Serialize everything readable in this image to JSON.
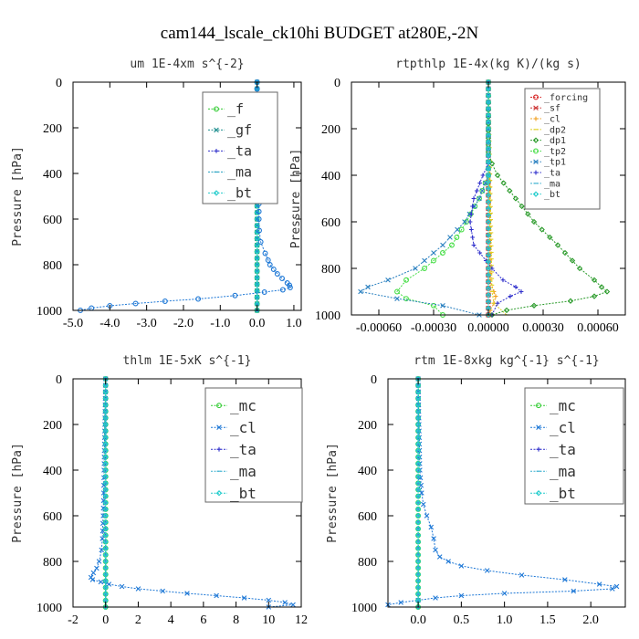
{
  "suptitle": "cam144_lscale_ck10hi  BUDGET at280E,-2N",
  "chart_data": [
    {
      "type": "line",
      "title": "um  1E-4xm s^{-2}",
      "ylabel": "Pressure [hPa]",
      "xlim": [
        -5,
        1.2
      ],
      "ylim": [
        1000,
        0
      ],
      "xticks": [
        "-5.0",
        "-4.0",
        "-3.0",
        "-2.0",
        "-1.0",
        "0.0",
        "1.0"
      ],
      "xtick_values": [
        -5,
        -4,
        -3,
        -2,
        -1,
        0,
        1
      ],
      "yticks": [
        "0",
        "200",
        "400",
        "600",
        "800",
        "1000"
      ],
      "ytick_values": [
        0,
        200,
        400,
        600,
        800,
        1000
      ],
      "legend_position": "top-right",
      "series": [
        {
          "name": "_f",
          "color": "#33cc33",
          "y": [
            0,
            200,
            400,
            600,
            800,
            1000
          ],
          "x": [
            0,
            0,
            0,
            0,
            0,
            0
          ]
        },
        {
          "name": "_gf",
          "color": "#1f8f8f",
          "y": [
            0,
            200,
            400,
            600,
            800,
            1000
          ],
          "x": [
            0,
            0,
            0,
            0,
            0,
            0
          ]
        },
        {
          "name": "_ta",
          "color": "#3333cc",
          "y": [
            0,
            200,
            400,
            600,
            800,
            1000
          ],
          "x": [
            0,
            0,
            0,
            0,
            0,
            0
          ]
        },
        {
          "name": "_ma",
          "color": "#22a0c0",
          "y": [
            0,
            200,
            400,
            600,
            800,
            1000
          ],
          "x": [
            0,
            0,
            0,
            0,
            0,
            0
          ]
        },
        {
          "name": "_bt",
          "color": "#22cccc",
          "y": [
            0,
            200,
            400,
            600,
            800,
            1000
          ],
          "x": [
            0,
            0,
            0,
            0,
            0,
            0
          ]
        },
        {
          "name": "",
          "color": "#1e78d6",
          "y": [
            0,
            120,
            150,
            200,
            300,
            400,
            500,
            600,
            650,
            700,
            750,
            780,
            800,
            820,
            840,
            860,
            880,
            890,
            900,
            910,
            920,
            935,
            950,
            960,
            970,
            980,
            990,
            1000
          ],
          "x": [
            0,
            0,
            -0.05,
            0.02,
            0.05,
            0.05,
            0.05,
            0.05,
            0.06,
            0.1,
            0.22,
            0.3,
            0.35,
            0.45,
            0.55,
            0.68,
            0.82,
            0.88,
            0.9,
            0.7,
            0.2,
            -0.6,
            -1.6,
            -2.5,
            -3.3,
            -4.0,
            -4.5,
            -4.8
          ]
        }
      ]
    },
    {
      "type": "line",
      "title": "rtpthlp  1E-4x(kg K)/(kg s)",
      "ylabel": "Pressure [hPa]",
      "xlim": [
        -0.00075,
        0.00075
      ],
      "ylim": [
        1000,
        0
      ],
      "xticks": [
        "-0.00060",
        "-0.00030",
        "0.00000",
        "0.00030",
        "0.00060"
      ],
      "xtick_values": [
        -0.0006,
        -0.0003,
        0,
        0.0003,
        0.0006
      ],
      "yticks": [
        "0",
        "200",
        "400",
        "600",
        "800",
        "1000"
      ],
      "ytick_values": [
        0,
        200,
        400,
        600,
        800,
        1000
      ],
      "legend_position": "top-right",
      "series": [
        {
          "name": "_forcing",
          "color": "#d62020",
          "y": [
            0,
            200,
            400,
            600,
            800,
            1000
          ],
          "x": [
            0,
            0,
            0,
            0,
            0,
            0
          ]
        },
        {
          "name": "_sf",
          "color": "#cc3333",
          "y": [
            0,
            200,
            400,
            600,
            800,
            1000
          ],
          "x": [
            0,
            0,
            0,
            0,
            0,
            0
          ]
        },
        {
          "name": "_cl",
          "color": "#f0a020",
          "y": [
            0,
            850,
            900,
            920,
            950,
            980,
            1000
          ],
          "x": [
            0,
            1e-05,
            3e-05,
            4e-05,
            3e-05,
            1e-05,
            0
          ]
        },
        {
          "name": "_dp2",
          "color": "#e0d020",
          "y": [
            0,
            900,
            950,
            1000
          ],
          "x": [
            0,
            2e-05,
            3e-05,
            0.0001
          ]
        },
        {
          "name": "_dp1",
          "color": "#2a9a2a",
          "y": [
            0,
            300,
            350,
            400,
            500,
            600,
            700,
            800,
            850,
            880,
            900,
            920,
            940,
            960,
            980,
            1000
          ],
          "x": [
            0,
            0,
            2e-05,
            5e-05,
            0.00015,
            0.00025,
            0.00038,
            0.0005,
            0.00058,
            0.00062,
            0.00065,
            0.00058,
            0.00045,
            0.00025,
            0.0001,
            2e-05
          ]
        },
        {
          "name": "_tp2",
          "color": "#44dd44",
          "y": [
            0,
            400,
            500,
            600,
            700,
            800,
            850,
            900,
            930,
            960,
            1000
          ],
          "x": [
            0,
            0,
            -5e-05,
            -0.00012,
            -0.0002,
            -0.00035,
            -0.00045,
            -0.0005,
            -0.00045,
            -0.0003,
            -0.00025
          ]
        },
        {
          "name": "_tp1",
          "color": "#2a80c0",
          "y": [
            0,
            400,
            500,
            600,
            700,
            800,
            850,
            880,
            900,
            930,
            960,
            1000
          ],
          "x": [
            0,
            0,
            -5e-05,
            -0.00013,
            -0.00025,
            -0.0004,
            -0.00055,
            -0.00066,
            -0.0007,
            -0.0005,
            -0.00025,
            -5e-05
          ]
        },
        {
          "name": "_ta",
          "color": "#3030cc",
          "y": [
            0,
            350,
            400,
            500,
            600,
            700,
            800,
            850,
            880,
            900,
            920,
            950,
            1000
          ],
          "x": [
            0,
            0,
            -3e-05,
            -8e-05,
            -0.0001,
            -8e-05,
            2e-05,
            8e-05,
            0.00015,
            0.00018,
            0.00012,
            5e-05,
            2e-05
          ]
        },
        {
          "name": "_ma",
          "color": "#3ab0d0",
          "y": [
            0,
            200,
            400,
            600,
            800,
            1000
          ],
          "x": [
            0,
            0,
            0,
            0,
            0,
            0
          ]
        },
        {
          "name": "_bt",
          "color": "#22cccc",
          "y": [
            0,
            200,
            400,
            600,
            800,
            1000
          ],
          "x": [
            0,
            0,
            0,
            0,
            0,
            0
          ]
        }
      ]
    },
    {
      "type": "line",
      "title": "thlm  1E-5xK s^{-1}",
      "ylabel": "Pressure [hPa]",
      "xlim": [
        -2,
        12
      ],
      "ylim": [
        1000,
        0
      ],
      "xticks": [
        "-2",
        "0",
        "2",
        "4",
        "6",
        "8",
        "10",
        "12"
      ],
      "xtick_values": [
        -2,
        0,
        2,
        4,
        6,
        8,
        10,
        12
      ],
      "yticks": [
        "0",
        "200",
        "400",
        "600",
        "800",
        "1000"
      ],
      "ytick_values": [
        0,
        200,
        400,
        600,
        800,
        1000
      ],
      "legend_position": "top-right",
      "series": [
        {
          "name": "_mc",
          "color": "#33cc33",
          "y": [
            0,
            200,
            400,
            600,
            800,
            1000
          ],
          "x": [
            0,
            0,
            0,
            0,
            0,
            0
          ]
        },
        {
          "name": "_cl",
          "color": "#1e78d6",
          "y": [
            0,
            200,
            400,
            500,
            600,
            700,
            750,
            800,
            830,
            850,
            870,
            880,
            890,
            900,
            910,
            920,
            930,
            940,
            950,
            960,
            970,
            980,
            990,
            1000
          ],
          "x": [
            0,
            -0.05,
            -0.1,
            -0.12,
            -0.15,
            -0.2,
            -0.25,
            -0.4,
            -0.55,
            -0.75,
            -0.9,
            -0.8,
            -0.3,
            0.2,
            1.0,
            2.0,
            3.5,
            5.0,
            6.8,
            8.5,
            10.0,
            11.0,
            11.5,
            10.0
          ]
        },
        {
          "name": "_ta",
          "color": "#3030cc",
          "y": [
            0,
            200,
            400,
            600,
            800,
            1000
          ],
          "x": [
            0,
            0,
            0,
            0,
            0,
            0
          ]
        },
        {
          "name": "_ma",
          "color": "#3ab0d0",
          "y": [
            0,
            200,
            400,
            600,
            800,
            1000
          ],
          "x": [
            0,
            0,
            0,
            0,
            0,
            0
          ]
        },
        {
          "name": "_bt",
          "color": "#22cccc",
          "y": [
            0,
            200,
            400,
            600,
            800,
            1000
          ],
          "x": [
            0,
            0,
            0,
            0,
            0,
            0
          ]
        }
      ]
    },
    {
      "type": "line",
      "title": "rtm  1E-8xkg kg^{-1} s^{-1}",
      "ylabel": "Pressure [hPa]",
      "xlim": [
        -0.35,
        2.4
      ],
      "ylim": [
        1000,
        0
      ],
      "xticks": [
        "0.0",
        "0.5",
        "1.0",
        "1.5",
        "2.0"
      ],
      "xtick_values": [
        0,
        0.5,
        1,
        1.5,
        2
      ],
      "yticks": [
        "0",
        "200",
        "400",
        "600",
        "800",
        "1000"
      ],
      "ytick_values": [
        0,
        200,
        400,
        600,
        800,
        1000
      ],
      "legend_position": "top-right",
      "series": [
        {
          "name": "_mc",
          "color": "#33cc33",
          "y": [
            0,
            200,
            400,
            600,
            800,
            1000
          ],
          "x": [
            0,
            0,
            0,
            0,
            0,
            0
          ]
        },
        {
          "name": "_cl",
          "color": "#1e78d6",
          "y": [
            0,
            200,
            400,
            500,
            550,
            600,
            650,
            700,
            750,
            780,
            800,
            820,
            840,
            860,
            880,
            900,
            910,
            920,
            930,
            940,
            950,
            960,
            970,
            980,
            990
          ],
          "x": [
            0,
            0.01,
            0.02,
            0.04,
            0.06,
            0.1,
            0.15,
            0.18,
            0.2,
            0.25,
            0.35,
            0.5,
            0.8,
            1.2,
            1.7,
            2.1,
            2.3,
            2.25,
            1.8,
            1.0,
            0.5,
            0.2,
            0.0,
            -0.2,
            -0.35
          ]
        },
        {
          "name": "_ta",
          "color": "#3030cc",
          "y": [
            0,
            200,
            400,
            600,
            800,
            1000
          ],
          "x": [
            0,
            0,
            0,
            0,
            0,
            0
          ]
        },
        {
          "name": "_ma",
          "color": "#3ab0d0",
          "y": [
            0,
            200,
            400,
            600,
            800,
            1000
          ],
          "x": [
            0,
            0,
            0,
            0,
            0,
            0
          ]
        },
        {
          "name": "_bt",
          "color": "#22cccc",
          "y": [
            0,
            200,
            400,
            600,
            800,
            1000
          ],
          "x": [
            0,
            0,
            0,
            0,
            0,
            0
          ]
        }
      ]
    }
  ]
}
